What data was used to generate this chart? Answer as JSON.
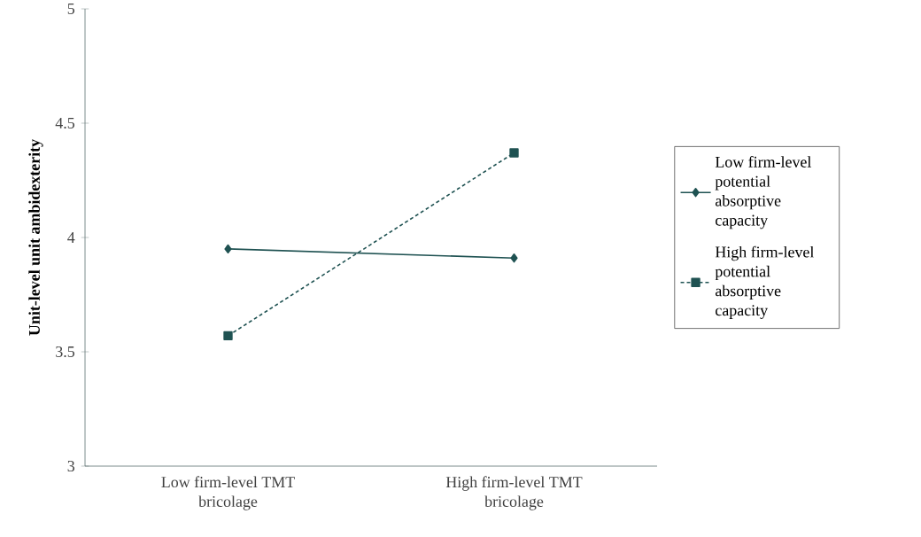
{
  "chart_data": {
    "type": "line",
    "ylabel": "**Unit-level unit ambidexterity**",
    "categories": [
      "Low firm-level TMT bricolage",
      "High firm-level TMT bricolage"
    ],
    "series": [
      {
        "name": "Low firm-level potential absorptive capacity",
        "color": "#1f5252",
        "values": [
          3.95,
          3.91
        ],
        "marker": "diamond",
        "line_style": "solid"
      },
      {
        "name": "High firm-level potential absorptive capacity",
        "color": "#1f5252",
        "values": [
          3.57,
          4.37
        ],
        "marker": "square",
        "line_style": "dashed"
      }
    ],
    "ylim": [
      3,
      5
    ],
    "yticks": [
      3,
      3.5,
      4,
      4.5,
      5
    ],
    "grid": false,
    "legend": "right"
  }
}
